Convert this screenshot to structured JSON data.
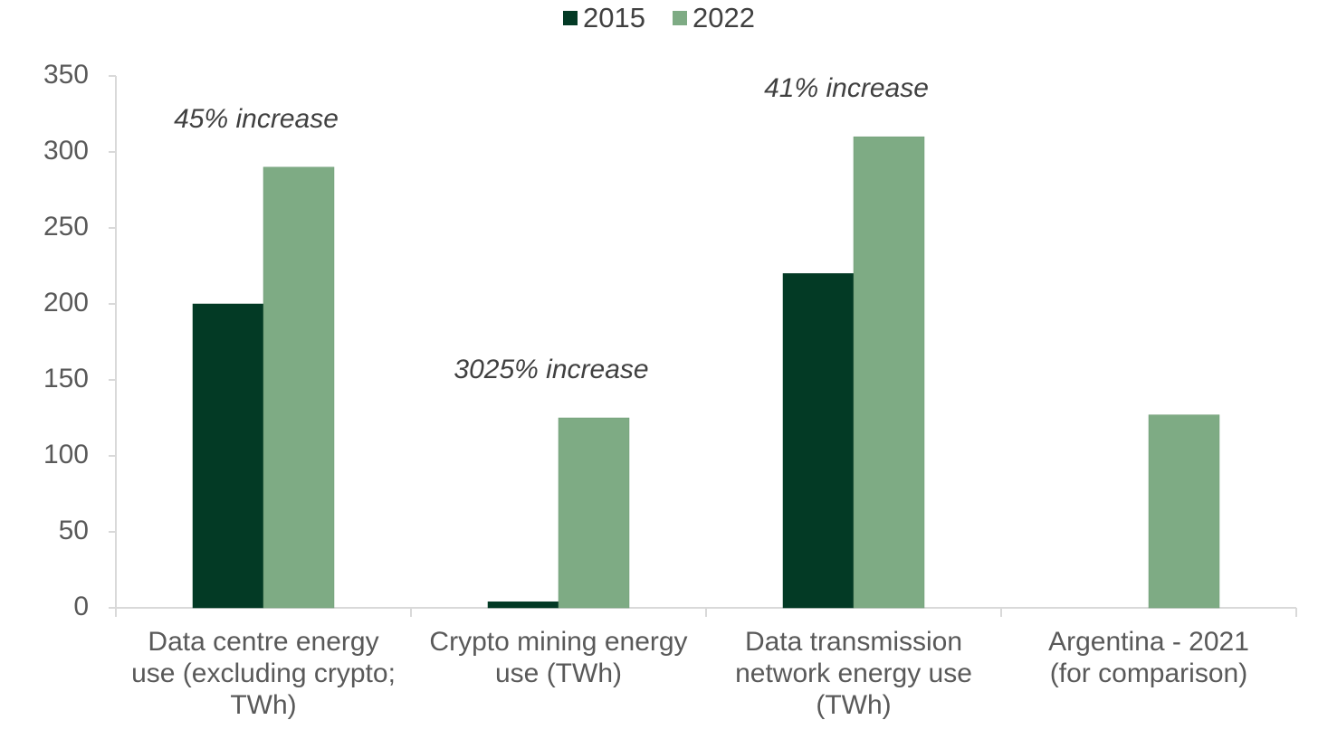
{
  "chart_data": {
    "type": "bar",
    "title": "",
    "xlabel": "",
    "ylabel": "",
    "ylim": [
      0,
      350
    ],
    "yticks": [
      0,
      50,
      100,
      150,
      200,
      250,
      300,
      350
    ],
    "grid": false,
    "legend_position": "top-center",
    "categories": [
      "Data centre energy use (excluding crypto; TWh)",
      "Crypto mining energy use (TWh)",
      "Data transmission network energy use (TWh)",
      "Argentina - 2021 (for comparison)"
    ],
    "category_lines": [
      [
        "Data centre energy",
        "use (excluding crypto;",
        "TWh)"
      ],
      [
        "Crypto mining energy",
        "use (TWh)"
      ],
      [
        "Data transmission",
        "network energy use",
        "(TWh)"
      ],
      [
        "Argentina - 2021",
        "(for comparison)"
      ]
    ],
    "series": [
      {
        "name": "2015",
        "color": "#033a25",
        "values": [
          200,
          4,
          220,
          null
        ]
      },
      {
        "name": "2022",
        "color": "#7eab84",
        "values": [
          290,
          125,
          310,
          127
        ]
      }
    ],
    "annotations": [
      "45% increase",
      "3025% increase",
      "41% increase",
      ""
    ]
  }
}
